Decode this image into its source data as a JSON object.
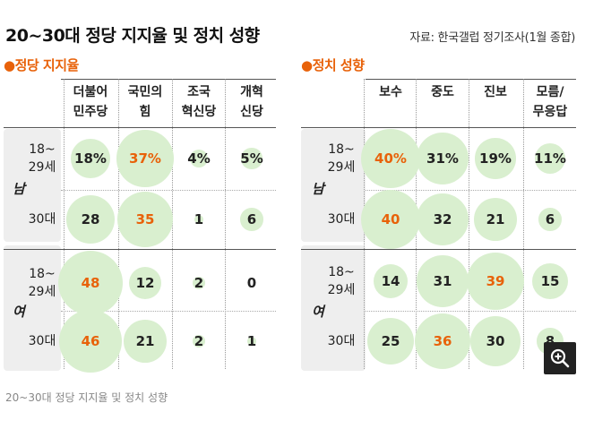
{
  "title": "20~30대 정당 지지율 및 정치 성향",
  "source": "자료: 한국갤럽 정기조사(1월 종합)",
  "caption": "20~30대 정당 지지율 및 정치 성향",
  "colors": {
    "accent": "#e8620a",
    "bubble": "#d9efcf",
    "band": "#eeeeee"
  },
  "zoom_icon": "zoom-in-icon",
  "chart_data": [
    {
      "type": "table",
      "title": "●정당 지지율",
      "columns": [
        "더불어\n민주당",
        "국민의\n힘",
        "조국\n혁신당",
        "개혁\n신당"
      ],
      "groups": [
        {
          "label": "남",
          "rows": [
            {
              "label": "18~\n29세",
              "values": [
                18,
                37,
                4,
                5
              ],
              "display": [
                "18%",
                "37%",
                "4%",
                "5%"
              ],
              "highlight": 1
            },
            {
              "label": "30대",
              "values": [
                28,
                35,
                1,
                6
              ],
              "display": [
                "28",
                "35",
                "1",
                "6"
              ],
              "highlight": 1
            }
          ]
        },
        {
          "label": "여",
          "rows": [
            {
              "label": "18~\n29세",
              "values": [
                48,
                12,
                2,
                0
              ],
              "display": [
                "48",
                "12",
                "2",
                "0"
              ],
              "highlight": 0
            },
            {
              "label": "30대",
              "values": [
                46,
                21,
                2,
                1
              ],
              "display": [
                "46",
                "21",
                "2",
                "1"
              ],
              "highlight": 0
            }
          ]
        }
      ]
    },
    {
      "type": "table",
      "title": "●정치 성향",
      "columns": [
        "보수",
        "중도",
        "진보",
        "모름/\n무응답"
      ],
      "groups": [
        {
          "label": "남",
          "rows": [
            {
              "label": "18~\n29세",
              "values": [
                40,
                31,
                19,
                11
              ],
              "display": [
                "40%",
                "31%",
                "19%",
                "11%"
              ],
              "highlight": 0
            },
            {
              "label": "30대",
              "values": [
                40,
                32,
                21,
                6
              ],
              "display": [
                "40",
                "32",
                "21",
                "6"
              ],
              "highlight": 0
            }
          ]
        },
        {
          "label": "여",
          "rows": [
            {
              "label": "18~\n29세",
              "values": [
                14,
                31,
                39,
                15
              ],
              "display": [
                "14",
                "31",
                "39",
                "15"
              ],
              "highlight": 2
            },
            {
              "label": "30대",
              "values": [
                25,
                36,
                30,
                8
              ],
              "display": [
                "25",
                "36",
                "30",
                "8"
              ],
              "highlight": 1
            }
          ]
        }
      ]
    }
  ]
}
